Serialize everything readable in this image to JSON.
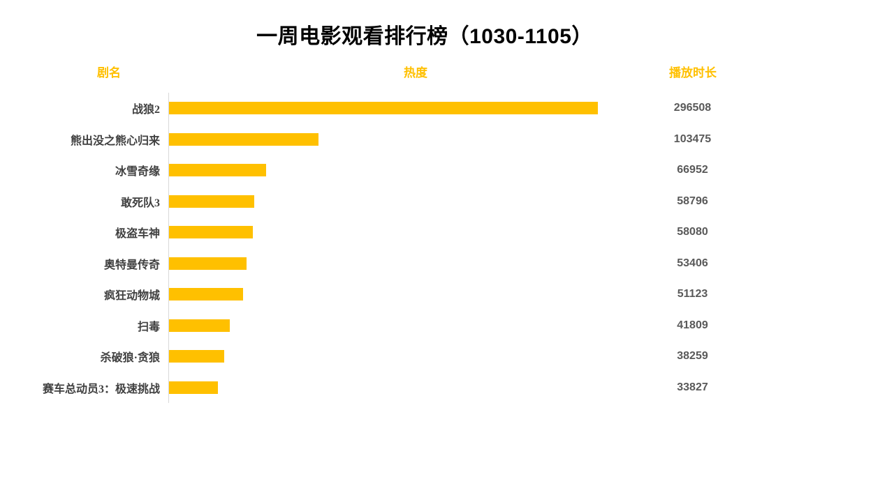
{
  "title": "一周电影观看排行榜（1030-1105）",
  "columns": {
    "name": "剧名",
    "heat": "热度",
    "duration": "播放时长"
  },
  "colors": {
    "bar": "#FFC000",
    "header_text": "#FFC000",
    "label_text": "#404040",
    "value_text": "#595959",
    "axis_line": "#D9D9D9",
    "title_text": "#000000",
    "background": "#FFFFFF"
  },
  "chart_data": {
    "type": "bar",
    "orientation": "horizontal",
    "title": "一周电影观看排行榜（1030-1105）",
    "categories_label": "剧名",
    "bar_series_label": "热度",
    "value_column_label": "播放时长",
    "categories": [
      "战狼2",
      "熊出没之熊心归来",
      "冰雪奇缘",
      "敢死队3",
      "极盗车神",
      "奥特曼传奇",
      "疯狂动物城",
      "扫毒",
      "杀破狼·贪狼",
      "赛车总动员3：极速挑战"
    ],
    "values": [
      296508,
      103475,
      66952,
      58796,
      58080,
      53406,
      51123,
      41809,
      38259,
      33827
    ],
    "xlim": [
      0,
      296508
    ],
    "grid": false,
    "legend": false,
    "sorted": "descending"
  }
}
